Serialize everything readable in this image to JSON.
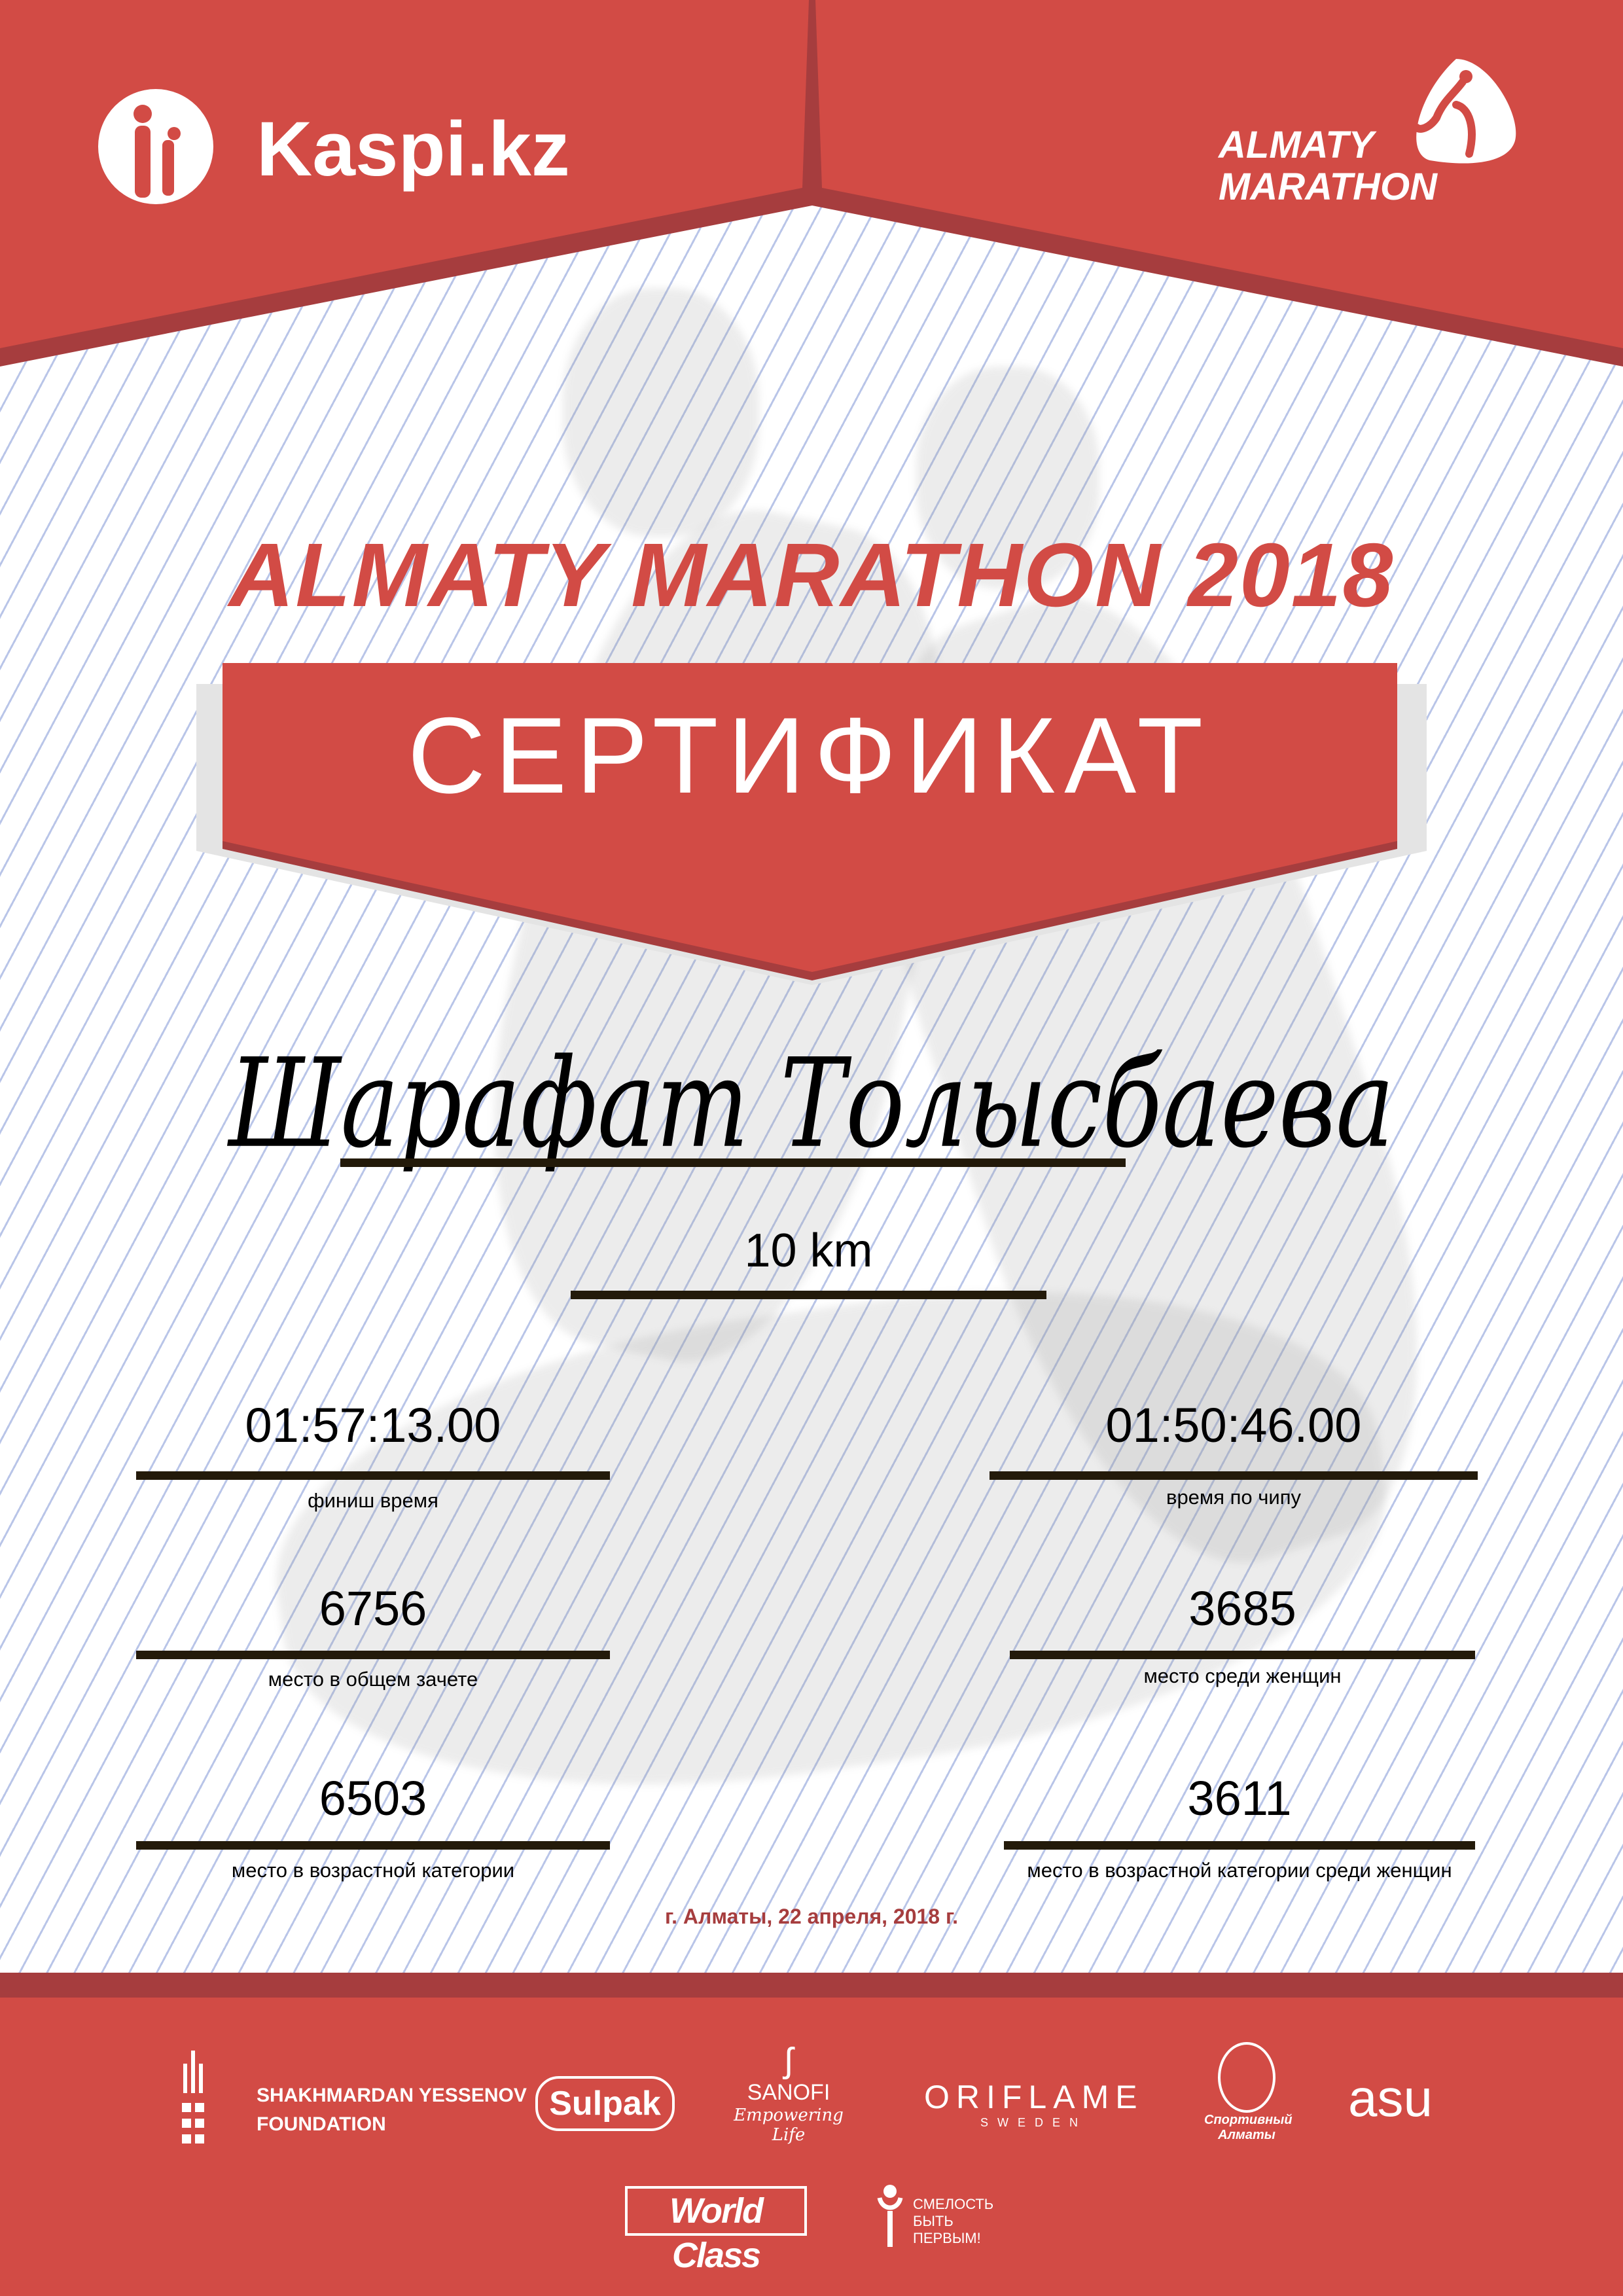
{
  "colors": {
    "brand_red": "#d24b45",
    "dark_red": "#a63d3e",
    "rule": "#231a0a"
  },
  "header": {
    "left_logo": "Kaspi.kz",
    "right_logo_line1": "ALMATY",
    "right_logo_line2": "MARATHON"
  },
  "title": "ALMATY MARATHON 2018",
  "banner": "СЕРТИФИКАТ",
  "participant": {
    "name": "Шарафат Толысбаева",
    "distance": "10 km"
  },
  "results": [
    {
      "value": "01:57:13.00",
      "label": "финиш время"
    },
    {
      "value": "01:50:46.00",
      "label": "время по чипу"
    },
    {
      "value": "6756",
      "label": "место в общем зачете"
    },
    {
      "value": "3685",
      "label": "место среди женщин"
    },
    {
      "value": "6503",
      "label": "место в возрастной категории"
    },
    {
      "value": "3611",
      "label": "место в возрастной категории среди женщин"
    }
  ],
  "date": "г. Алматы, 22 апреля, 2018 г.",
  "sponsors": {
    "yessenov_line1": "SHAKHMARDAN YESSENOV",
    "yessenov_line2": "FOUNDATION",
    "sulpak": "Sulpak",
    "sanofi": "SANOFI",
    "sanofi_tagline": "Empowering Life",
    "oriflame": "ORIFLAME",
    "oriflame_sub": "SWEDEN",
    "sport_almaty": "Спортивный Алматы",
    "asu": "asu",
    "worldclass": "World Class",
    "fund_line1": "СМЕЛОСТЬ",
    "fund_line2": "БЫТЬ",
    "fund_line3": "ПЕРВЫМ!"
  }
}
